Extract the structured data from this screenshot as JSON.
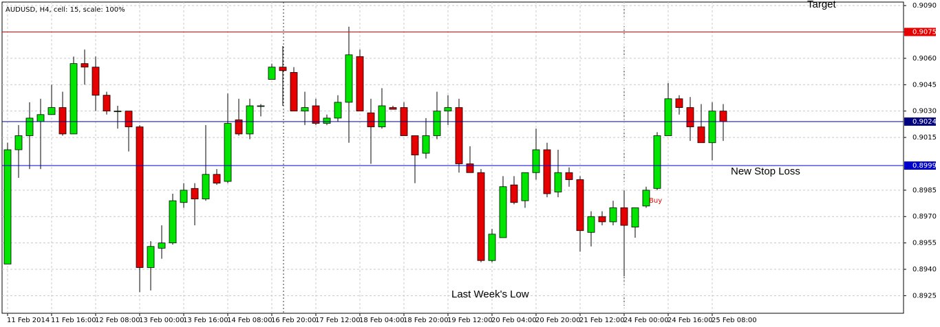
{
  "chart_data": {
    "type": "candlestick",
    "title": "AUDUSD, H4, cell: 15, scale: 100%",
    "categories": [
      "11 Feb 2014",
      null,
      null,
      null,
      "11 Feb 16:00",
      null,
      null,
      null,
      "12 Feb 08:00",
      null,
      null,
      null,
      "13 Feb 00:00",
      null,
      null,
      null,
      "13 Feb 16:00",
      null,
      null,
      null,
      "14 Feb 08:00",
      null,
      null,
      null,
      "16 Feb 20:00",
      null,
      null,
      null,
      "17 Feb 12:00",
      null,
      null,
      null,
      "18 Feb 04:00",
      null,
      null,
      null,
      "18 Feb 20:00",
      null,
      null,
      null,
      "19 Feb 12:00",
      null,
      null,
      null,
      "20 Feb 04:00",
      null,
      null,
      null,
      "20 Feb 20:00",
      null,
      null,
      null,
      "21 Feb 12:00",
      null,
      null,
      null,
      "24 Feb 00:00",
      null,
      null,
      null,
      "24 Feb 16:00",
      null,
      null,
      null,
      "25 Feb 08:00",
      null
    ],
    "open": [
      0.8943,
      0.9008,
      0.9016,
      0.9024,
      0.9028,
      0.9032,
      0.9017,
      0.9057,
      0.9055,
      0.9039,
      0.903,
      0.903,
      0.9021,
      0.8941,
      0.8952,
      0.8955,
      0.8978,
      0.8986,
      0.898,
      0.8994,
      0.899,
      0.9025,
      0.9017,
      0.9033,
      0.9048,
      0.9055,
      0.9052,
      0.903,
      0.9033,
      0.9023,
      0.9026,
      0.9035,
      0.9061,
      0.9029,
      0.9021,
      0.9032,
      0.9032,
      0.9016,
      0.9006,
      0.9016,
      0.903,
      0.9032,
      0.9,
      0.8995,
      0.8945,
      0.8958,
      0.8988,
      0.8979,
      0.8995,
      0.9008,
      0.8984,
      0.8995,
      0.8991,
      0.8961,
      0.897,
      0.8967,
      0.8975,
      0.8964,
      0.8976,
      0.8986,
      0.9016,
      0.9037,
      0.9032,
      0.9021,
      0.9012,
      0.903
    ],
    "high": [
      0.9012,
      0.9022,
      0.9035,
      0.9037,
      0.9045,
      0.9041,
      0.9061,
      0.9065,
      0.9061,
      0.9041,
      0.9033,
      0.903,
      0.9022,
      0.8956,
      0.8965,
      0.8983,
      0.8989,
      0.8989,
      0.9022,
      0.8997,
      0.904,
      0.9037,
      0.9037,
      0.9034,
      0.9057,
      0.9067,
      0.9055,
      0.9041,
      0.9037,
      0.9028,
      0.9039,
      0.9078,
      0.9065,
      0.9037,
      0.9043,
      0.9033,
      0.9035,
      0.9016,
      0.9026,
      0.9041,
      0.9039,
      0.9037,
      0.901,
      0.8997,
      0.8963,
      0.8993,
      0.8993,
      0.8995,
      0.902,
      0.9012,
      0.9008,
      0.8998,
      0.8993,
      0.8973,
      0.8973,
      0.8979,
      0.8985,
      0.8975,
      0.8987,
      0.9018,
      0.9046,
      0.9039,
      0.9038,
      0.9034,
      0.9035,
      0.9034
    ],
    "low": [
      0.8943,
      0.8992,
      0.8997,
      0.8997,
      0.9028,
      0.9016,
      0.9017,
      0.9045,
      0.903,
      0.9028,
      0.902,
      0.9007,
      0.8927,
      0.8928,
      0.8946,
      0.8954,
      0.8975,
      0.8965,
      0.8979,
      0.8988,
      0.8989,
      0.9016,
      0.9014,
      0.9027,
      0.9048,
      0.9033,
      0.903,
      0.9022,
      0.9022,
      0.9022,
      0.9024,
      0.9012,
      0.903,
      0.9,
      0.902,
      0.9031,
      0.9016,
      0.8989,
      0.9003,
      0.9014,
      0.9022,
      0.8995,
      0.8995,
      0.8944,
      0.8944,
      0.8958,
      0.8977,
      0.8975,
      0.8991,
      0.8981,
      0.8981,
      0.8987,
      0.895,
      0.8953,
      0.8965,
      0.8965,
      0.8936,
      0.8958,
      0.8975,
      0.8985,
      0.9016,
      0.9028,
      0.9013,
      0.9012,
      0.9002,
      0.9013
    ],
    "close": [
      0.9008,
      0.9016,
      0.9026,
      0.9028,
      0.9032,
      0.9017,
      0.9057,
      0.9055,
      0.9039,
      0.903,
      0.903,
      0.9021,
      0.8941,
      0.8953,
      0.8955,
      0.8979,
      0.8985,
      0.898,
      0.8994,
      0.8989,
      0.9023,
      0.9017,
      0.9033,
      0.9033,
      0.9055,
      0.9053,
      0.903,
      0.9032,
      0.9023,
      0.9026,
      0.9035,
      0.9062,
      0.903,
      0.9021,
      0.9033,
      0.9031,
      0.9016,
      0.9005,
      0.9016,
      0.903,
      0.9032,
      0.9,
      0.8995,
      0.8945,
      0.896,
      0.8987,
      0.8978,
      0.8995,
      0.9008,
      0.8983,
      0.8995,
      0.8991,
      0.8962,
      0.897,
      0.8967,
      0.8975,
      0.8965,
      0.8975,
      0.8985,
      0.9016,
      0.9037,
      0.9032,
      0.9021,
      0.9012,
      0.903,
      0.9024
    ],
    "up_color": "#00e600",
    "down_color": "#e60000",
    "outline_color": "#000000",
    "ylim": [
      0.8915,
      0.9092
    ],
    "yticks": [
      {
        "value": 0.909,
        "label": "0.9090"
      },
      0.9075,
      {
        "value": 0.906,
        "label": "0.9060"
      },
      0.9045,
      {
        "value": 0.903,
        "label": "0.9030"
      },
      0.9015,
      0.8985,
      {
        "value": 0.897,
        "label": "0.8970"
      },
      0.8955,
      {
        "value": 0.894,
        "label": "0.8940"
      },
      0.8925
    ],
    "grid": true,
    "price_lines": [
      {
        "value": 0.9075,
        "color": "#e60000"
      },
      {
        "value": 0.9024,
        "color": "#000080"
      },
      {
        "value": 0.8999,
        "color": "#0000cc"
      }
    ],
    "annotations": [
      "Target",
      "New Stop Loss",
      "Last Week's Low",
      "Buy"
    ]
  }
}
